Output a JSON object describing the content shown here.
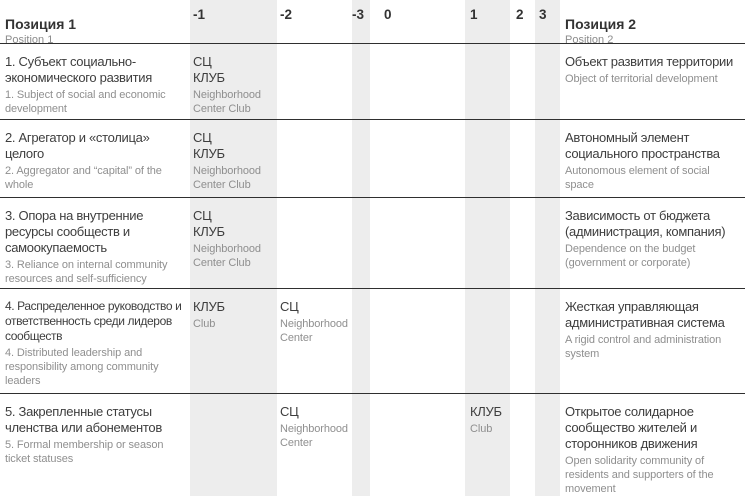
{
  "colors": {
    "column_shade": "#ededed",
    "rule": "#2f2f2f",
    "text_primary": "#3e3e3e",
    "text_secondary": "#8f8f8f"
  },
  "header": {
    "pos1_ru": "Позиция 1",
    "pos1_en": "Position 1",
    "scale": [
      "-1",
      "-2",
      "-3",
      "0",
      "1",
      "2",
      "3"
    ],
    "pos2_ru": "Позиция 2",
    "pos2_en": "Position 2"
  },
  "rows": [
    {
      "pos1_ru": "1. Субъект социально-экономического развития",
      "pos1_en": "1. Subject of social and economic development",
      "marks": {
        "m1": {
          "ru": "СЦ\nКЛУБ",
          "en": "Neighborhood Center Club"
        }
      },
      "pos2_ru": "Объект развития территории",
      "pos2_en": "Object of territorial development"
    },
    {
      "pos1_ru": "2. Агрегатор и «столица» целого",
      "pos1_en": "2. Aggregator and “capital” of the whole",
      "marks": {
        "m1": {
          "ru": "СЦ\nКЛУБ",
          "en": "Neighborhood Center Club"
        }
      },
      "pos2_ru": "Автономный элемент социального пространства",
      "pos2_en": "Autonomous element of social space"
    },
    {
      "pos1_ru": "3. Опора на внутренние ресурсы сообществ и самоокупаемость",
      "pos1_en": "3. Reliance on internal community resources and self-sufficiency",
      "marks": {
        "m1": {
          "ru": "СЦ\nКЛУБ",
          "en": "Neighborhood Center Club"
        }
      },
      "pos2_ru": "Зависимость от бюджета (администрация, компания)",
      "pos2_en": "Dependence on the budget (government or corporate)"
    },
    {
      "pos1_ru": "4. Распределенное руководство и ответственность среди лидеров сообществ",
      "pos1_en": "4. Distributed leadership and responsibility among community leaders",
      "marks": {
        "m1": {
          "ru": "КЛУБ",
          "en": "Club"
        },
        "m2": {
          "ru": "СЦ",
          "en": "Neighborhood Center"
        }
      },
      "pos2_ru": "Жесткая управляющая административная система",
      "pos2_en": "A rigid control and administration system"
    },
    {
      "pos1_ru": "5. Закрепленные статусы членства или абонементов",
      "pos1_en": "5. Formal membership or season ticket statuses",
      "marks": {
        "m2": {
          "ru": "СЦ",
          "en": "Neighborhood Center"
        },
        "p1": {
          "ru": "КЛУБ",
          "en": "Club"
        }
      },
      "pos2_ru": "Открытое солидарное сообщество жителей и сторонников движения",
      "pos2_en": "Open solidarity community of residents and supporters of the movement"
    }
  ]
}
